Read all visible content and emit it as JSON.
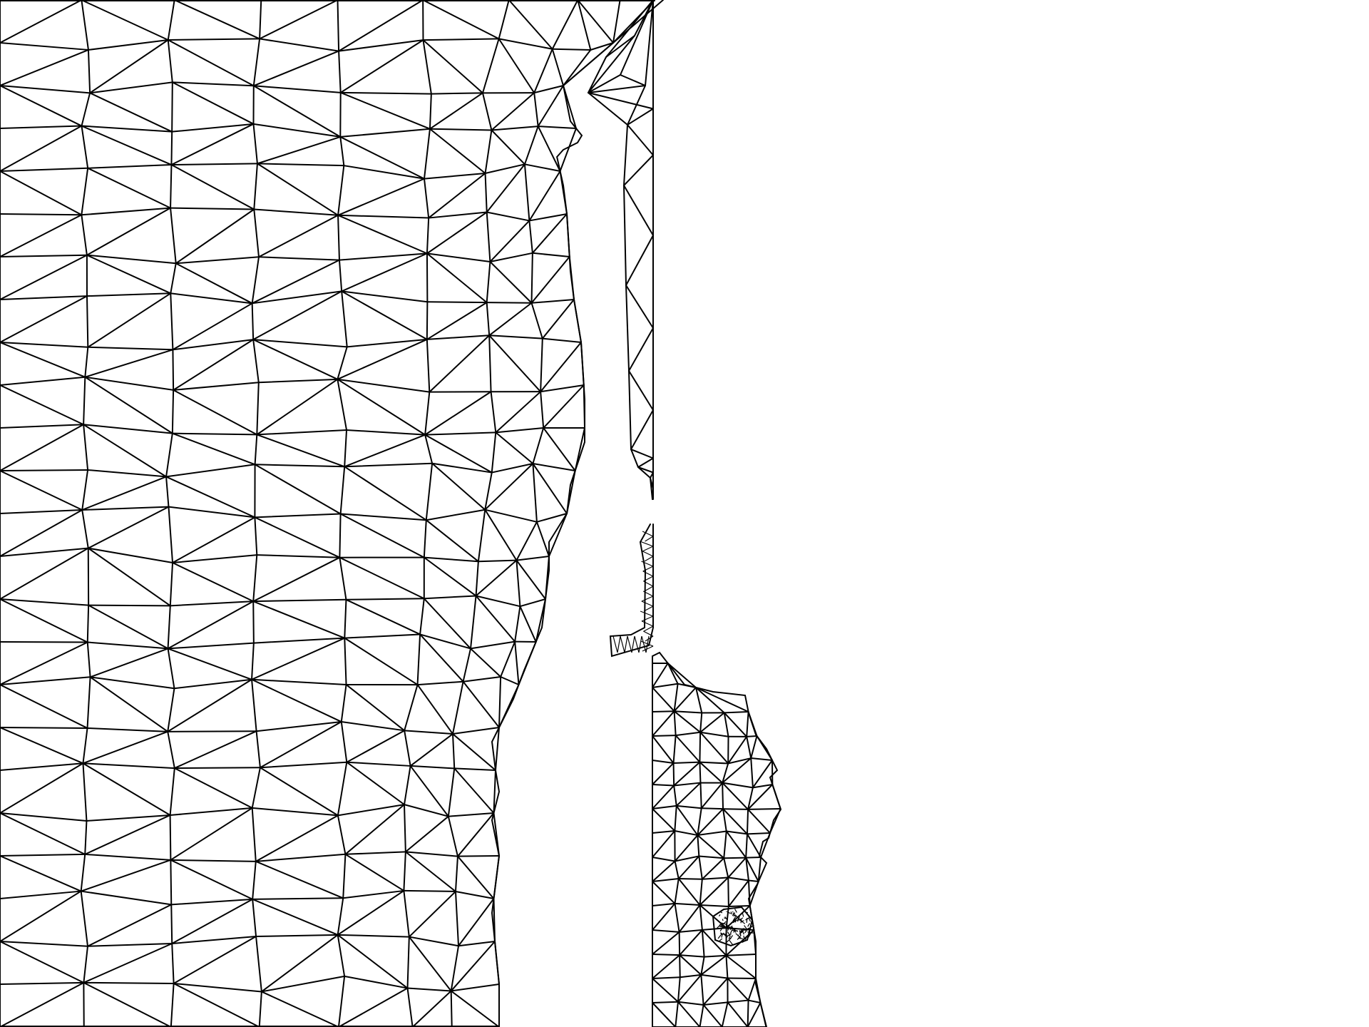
{
  "figure": {
    "type": "triangular-mesh",
    "background": "#ffffff",
    "line_color": "#000000",
    "regions": [
      "main-mesh-region",
      "channel-strip-region",
      "island-strip-region",
      "lower-right-island-region"
    ]
  }
}
